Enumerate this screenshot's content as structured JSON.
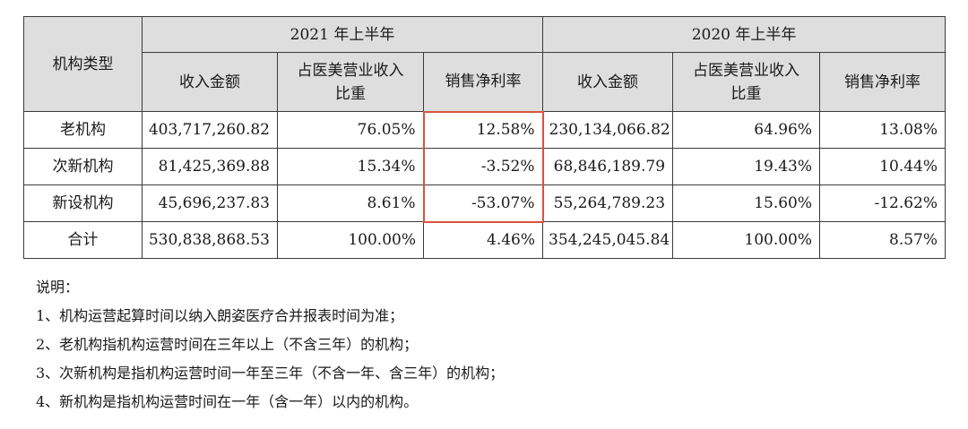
{
  "table": {
    "col_type": "机构类型",
    "period_2021": "2021 年上半年",
    "period_2020": "2020 年上半年",
    "sub_headers": {
      "revenue": "收入金额",
      "share_line1": "占医美营业收入",
      "share_line2": "比重",
      "margin": "销售净利率"
    },
    "rows": [
      {
        "name": "老机构",
        "rev_2021": "403,717,260.82",
        "share_2021": "76.05%",
        "margin_2021": "12.58%",
        "rev_2020": "230,134,066.82",
        "share_2020": "64.96%",
        "margin_2020": "13.08%"
      },
      {
        "name": "次新机构",
        "rev_2021": "81,425,369.88",
        "share_2021": "15.34%",
        "margin_2021": "-3.52%",
        "rev_2020": "68,846,189.79",
        "share_2020": "19.43%",
        "margin_2020": "10.44%"
      },
      {
        "name": "新设机构",
        "rev_2021": "45,696,237.83",
        "share_2021": "8.61%",
        "margin_2021": "-53.07%",
        "rev_2020": "55,264,789.23",
        "share_2020": "15.60%",
        "margin_2020": "-12.62%"
      },
      {
        "name": "合计",
        "rev_2021": "530,838,868.53",
        "share_2021": "100.00%",
        "margin_2021": "4.46%",
        "rev_2020": "354,245,045.84",
        "share_2020": "100.00%",
        "margin_2020": "8.57%"
      }
    ],
    "highlight_color": "#d9533f"
  },
  "notes": {
    "title": "说明：",
    "items": [
      "1、机构运营起算时间以纳入朗姿医疗合并报表时间为准；",
      "2、老机构指机构运营时间在三年以上（不含三年）的机构；",
      "3、次新机构是指机构运营时间一年至三年（不含一年、含三年）的机构；",
      "4、新机构是指机构运营时间在一年（含一年）以内的机构。"
    ]
  }
}
